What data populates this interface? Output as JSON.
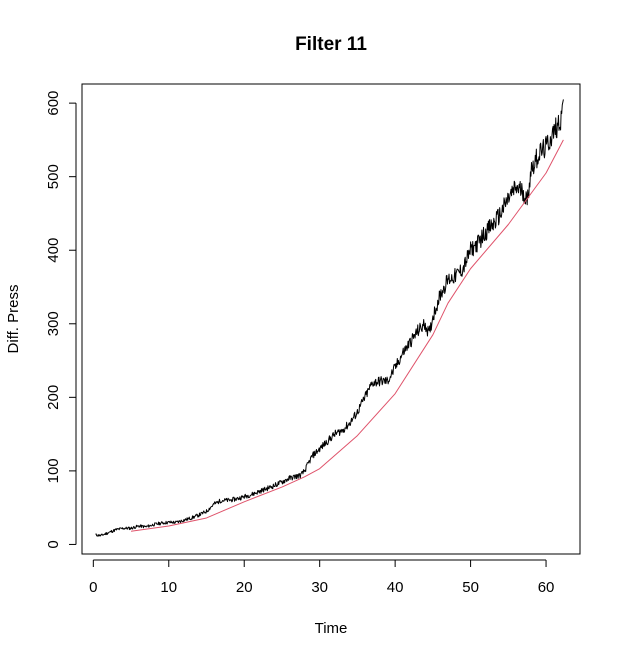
{
  "chart_data": {
    "type": "line",
    "title": "Filter 11",
    "xlabel": "Time",
    "ylabel": "Diff. Press",
    "xlim": [
      -1.5,
      64.5
    ],
    "ylim": [
      -13,
      626
    ],
    "x_ticks": [
      0,
      10,
      20,
      30,
      40,
      50,
      60
    ],
    "y_ticks": [
      0,
      100,
      200,
      300,
      400,
      500,
      600
    ],
    "grid": false,
    "legend": "none",
    "series": [
      {
        "color": "#000000",
        "style": "noisy",
        "x": [
          0.3,
          1,
          2,
          3,
          4,
          5,
          6,
          7,
          8,
          9,
          10,
          11,
          12,
          13,
          14,
          15,
          16,
          17,
          18,
          19,
          20,
          21,
          22,
          23,
          24,
          25,
          26,
          27,
          27.5,
          28,
          28.5,
          29,
          30,
          31,
          32,
          33,
          34,
          35,
          36,
          37,
          38,
          39,
          40,
          41,
          42,
          43,
          44,
          44.5,
          45,
          46,
          47,
          48,
          49,
          50,
          51,
          52,
          53,
          54,
          55,
          56,
          57,
          57.5,
          58,
          59,
          60,
          61,
          61.5,
          62,
          62.3
        ],
        "y": [
          13,
          12,
          16,
          20,
          22,
          22,
          25,
          24,
          27,
          29,
          30,
          30,
          33,
          36,
          40,
          45,
          55,
          60,
          60,
          62,
          65,
          68,
          72,
          76,
          80,
          85,
          90,
          93,
          94,
          100,
          110,
          120,
          130,
          140,
          150,
          155,
          165,
          180,
          200,
          220,
          222,
          222,
          240,
          260,
          275,
          290,
          300,
          285,
          310,
          340,
          360,
          365,
          375,
          400,
          410,
          425,
          435,
          450,
          470,
          485,
          480,
          465,
          510,
          530,
          540,
          560,
          570,
          580,
          605
        ]
      },
      {
        "color": "#df536b",
        "style": "smooth",
        "x": [
          5,
          10,
          15,
          20,
          25,
          28,
          30,
          35,
          40,
          45,
          47,
          50,
          55,
          60,
          62.3
        ],
        "y": [
          18,
          25,
          36,
          58,
          78,
          92,
          103,
          148,
          205,
          285,
          328,
          375,
          435,
          505,
          550
        ]
      }
    ]
  }
}
